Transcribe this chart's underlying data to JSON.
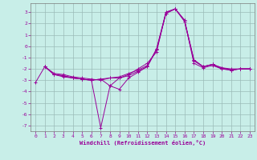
{
  "xlabel": "Windchill (Refroidissement éolien,°C)",
  "bg_color": "#c8eee8",
  "grid_color": "#9bbbb8",
  "line_color": "#990099",
  "spine_color": "#7a7a7a",
  "xlim": [
    -0.5,
    23.5
  ],
  "ylim": [
    -7.5,
    3.8
  ],
  "yticks": [
    3,
    2,
    1,
    0,
    -1,
    -2,
    -3,
    -4,
    -5,
    -6,
    -7
  ],
  "xticks": [
    0,
    1,
    2,
    3,
    4,
    5,
    6,
    7,
    8,
    9,
    10,
    11,
    12,
    13,
    14,
    15,
    16,
    17,
    18,
    19,
    20,
    21,
    22,
    23
  ],
  "lines": [
    {
      "x": [
        0,
        1,
        2,
        3,
        4,
        5,
        6,
        7,
        8,
        9,
        10,
        11,
        12,
        13,
        14,
        15,
        16,
        17,
        18,
        19,
        20,
        21,
        22,
        23
      ],
      "y": [
        -3.2,
        -1.8,
        -2.5,
        -2.6,
        -2.8,
        -2.9,
        -3.0,
        -7.2,
        -3.5,
        -3.8,
        -2.8,
        -2.3,
        -1.8,
        -0.2,
        3.0,
        3.3,
        2.2,
        -1.2,
        -1.8,
        -1.6,
        -2.0,
        -2.1,
        -2.0,
        -2.0
      ]
    },
    {
      "x": [
        1,
        2,
        3,
        4,
        5,
        6,
        7,
        8,
        9,
        10,
        11,
        12,
        13,
        14,
        15,
        16,
        17,
        18,
        19,
        20,
        21,
        22,
        23
      ],
      "y": [
        -1.8,
        -2.5,
        -2.7,
        -2.8,
        -2.9,
        -3.0,
        -2.9,
        -3.5,
        -2.8,
        -2.5,
        -2.0,
        -1.5,
        -0.5,
        3.0,
        3.3,
        2.3,
        -1.5,
        -1.9,
        -1.7,
        -2.0,
        -2.1,
        -2.0,
        -2.0
      ]
    },
    {
      "x": [
        1,
        2,
        3,
        4,
        5,
        6,
        7,
        8,
        9,
        10,
        11,
        12,
        13,
        14,
        15,
        16,
        17,
        18,
        19,
        20,
        21,
        22,
        23
      ],
      "y": [
        -1.8,
        -2.5,
        -2.6,
        -2.8,
        -2.9,
        -3.0,
        -2.9,
        -2.8,
        -2.8,
        -2.6,
        -2.2,
        -1.8,
        -0.3,
        2.9,
        3.3,
        2.3,
        -1.2,
        -1.8,
        -1.6,
        -1.9,
        -2.0,
        -2.0,
        -2.0
      ]
    },
    {
      "x": [
        1,
        2,
        3,
        4,
        5,
        6,
        7,
        8,
        9,
        10,
        11,
        12,
        13,
        14,
        15,
        16,
        17,
        18,
        19,
        20,
        21,
        22,
        23
      ],
      "y": [
        -1.8,
        -2.4,
        -2.5,
        -2.7,
        -2.8,
        -2.9,
        -3.0,
        -2.8,
        -2.7,
        -2.4,
        -2.1,
        -1.7,
        -0.3,
        2.9,
        3.3,
        2.2,
        -1.3,
        -1.8,
        -1.6,
        -1.9,
        -2.1,
        -2.0,
        -2.0
      ]
    }
  ]
}
